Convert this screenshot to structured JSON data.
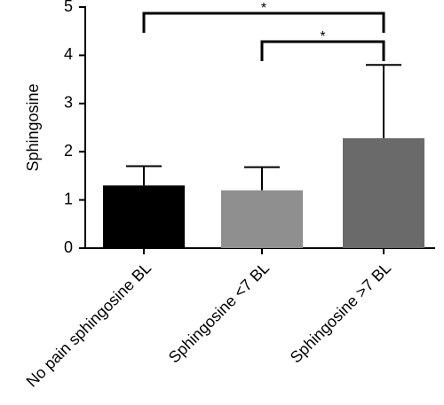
{
  "chart_data": {
    "type": "bar",
    "ylabel": "Sphingosine",
    "categories": [
      "No pain sphingosine BL",
      "Sphingosine <7 BL",
      "Sphingosine >7 BL"
    ],
    "values": [
      1.3,
      1.2,
      2.28
    ],
    "errors": [
      0.4,
      0.48,
      1.52
    ],
    "colors": [
      "#000000",
      "#8f8f8f",
      "#6a6a6a"
    ],
    "ylim": [
      0,
      5
    ],
    "yticks": [
      0,
      1,
      2,
      3,
      4,
      5
    ],
    "annotations": [
      "*",
      "*"
    ]
  }
}
